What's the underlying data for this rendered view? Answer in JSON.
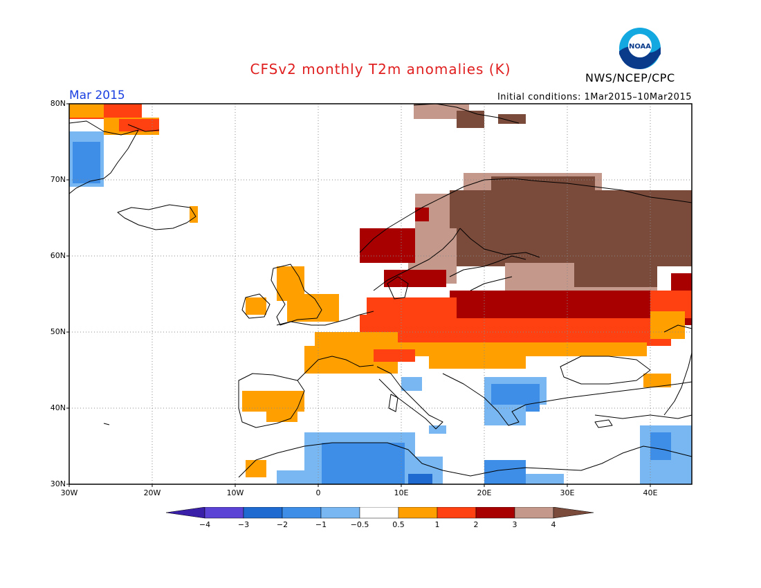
{
  "title": "CFSv2 monthly T2m anomalies (K)",
  "organization": "NWS/NCEP/CPC",
  "logo_text": "NOAA",
  "month_label": "Mar 2015",
  "initial_conditions": "Initial conditions: 1Mar2015–10Mar2015",
  "lat_labels": [
    "80N",
    "70N",
    "60N",
    "50N",
    "40N",
    "30N"
  ],
  "lon_labels": [
    "30W",
    "20W",
    "10W",
    "0",
    "10E",
    "20E",
    "30E",
    "40E"
  ],
  "colorbar": {
    "labels": [
      "−4",
      "−3",
      "−2",
      "−1",
      "−0.5",
      "0.5",
      "1",
      "2",
      "3",
      "4"
    ],
    "colors": [
      "#3a1fa8",
      "#5b43d6",
      "#1f6ad0",
      "#3e8ee8",
      "#78b7f2",
      "#ffffff",
      "#ffa000",
      "#ff4010",
      "#a80000",
      "#c4988a",
      "#7a4a3a"
    ]
  },
  "map": {
    "extent": {
      "lon": [
        -30,
        45
      ],
      "lat": [
        30,
        80
      ]
    },
    "colors": {
      "ocean": "#ffffff",
      "coast": "#000000",
      "grid": "#888888"
    }
  }
}
